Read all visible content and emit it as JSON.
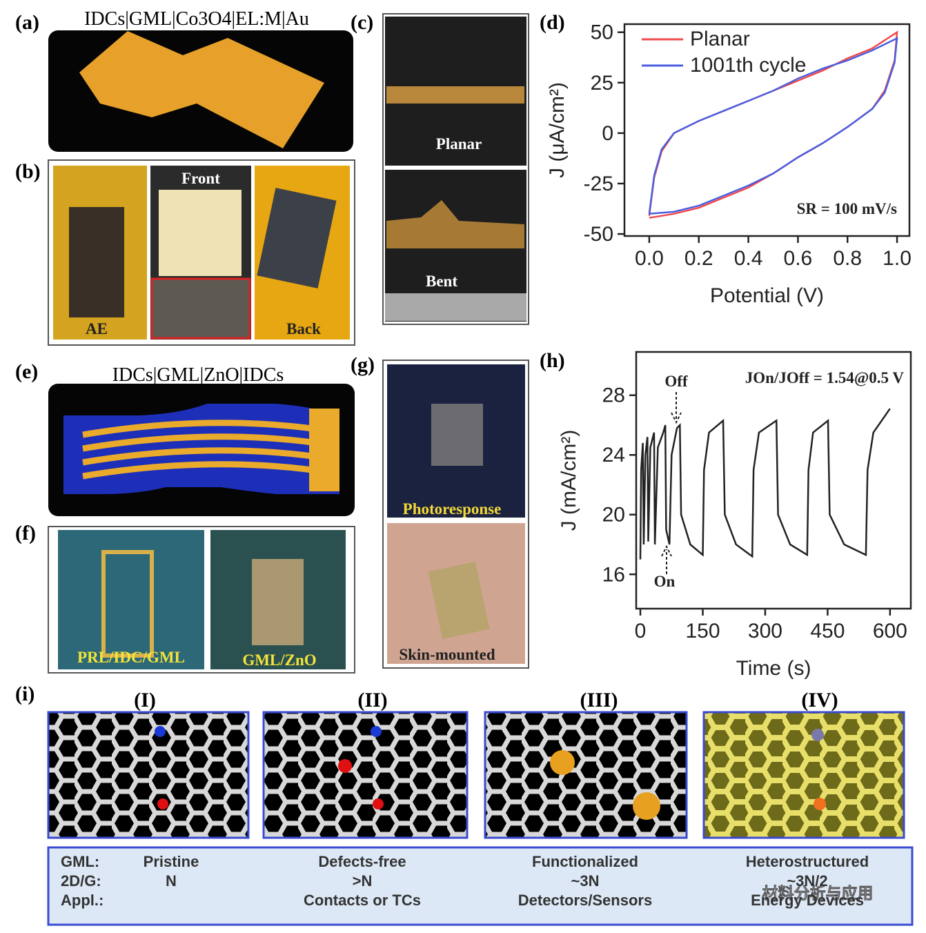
{
  "panels": {
    "a": {
      "label": "(a)",
      "caption": "IDCs|GML|Co3O4|EL:M|Au"
    },
    "b": {
      "label": "(b)",
      "photos": [
        "AE",
        "Front",
        "Back"
      ]
    },
    "c": {
      "label": "(c)",
      "photos": [
        "Planar",
        "Bent"
      ]
    },
    "d": {
      "label": "(d)"
    },
    "e": {
      "label": "(e)",
      "caption": "IDCs|GML|ZnO|IDCs"
    },
    "f": {
      "label": "(f)",
      "photos": [
        "PRL/IDC/GML",
        "GML/ZnO"
      ]
    },
    "g": {
      "label": "(g)",
      "photos": [
        "Photoresponse",
        "Skin-mounted"
      ]
    },
    "h": {
      "label": "(h)"
    },
    "i": {
      "label": "(i)",
      "subpanels": [
        "(I)",
        "(II)",
        "(III)",
        "(IV)"
      ]
    }
  },
  "table": {
    "row_labels": [
      "GML:",
      "2D/G:",
      "Appl.:"
    ],
    "columns": [
      [
        "Pristine",
        "N"
      ],
      [
        "Defects-free",
        ">N",
        "Contacts or TCs"
      ],
      [
        "Functionalized",
        "~3N",
        "Detectors/Sensors"
      ],
      [
        "Heterostructured",
        "~3N/2",
        "Energy Devices"
      ]
    ]
  },
  "watermark": "材料分析与应用",
  "chart_data": [
    {
      "type": "line",
      "xlabel": "Potential (V)",
      "ylabel": "J (μA/cm²)",
      "annotation": "SR = 100 mV/s",
      "legend": "upper left",
      "x": [
        0,
        0.02,
        0.05,
        0.1,
        0.2,
        0.3,
        0.4,
        0.5,
        0.6,
        0.7,
        0.8,
        0.9,
        1.0,
        0.99,
        0.95,
        0.9,
        0.8,
        0.7,
        0.6,
        0.5,
        0.4,
        0.3,
        0.2,
        0.1,
        0.0
      ],
      "series": [
        {
          "name": "Planar",
          "color": "#f0484c",
          "values": [
            -41,
            -22,
            -9,
            0,
            6,
            11,
            16,
            21,
            26,
            31,
            37,
            42,
            50,
            36,
            21,
            12,
            3,
            -5,
            -12,
            -20,
            -27,
            -32,
            -37,
            -40,
            -42
          ]
        },
        {
          "name": "1001th cycle",
          "color": "#4a5ee0",
          "values": [
            -40,
            -21,
            -8,
            0,
            6,
            11,
            16,
            21,
            27,
            32,
            36,
            41,
            47,
            35,
            20,
            12,
            3,
            -5,
            -12,
            -20,
            -26,
            -31,
            -36,
            -39,
            -40
          ]
        }
      ],
      "xlim": [
        -0.1,
        1.05
      ],
      "xticks": [
        {
          "value": 0,
          "label": "0.0"
        },
        0.2,
        0.4,
        0.6,
        0.8,
        {
          "value": 1,
          "label": "1.0"
        }
      ],
      "ylim": [
        -51,
        54
      ],
      "yticks": [
        -50,
        -25,
        0,
        25,
        50
      ]
    },
    {
      "type": "line",
      "xlabel": "Time (s)",
      "ylabel": "J (mA/cm²)",
      "color": "#222222",
      "annotations": [
        "Off",
        "On",
        "JOn/JOff = 1.54@0.5 V"
      ],
      "x": [
        0,
        2,
        6,
        8,
        12,
        17,
        19,
        24,
        33,
        35,
        42,
        55,
        60,
        62,
        70,
        75,
        88,
        95,
        98,
        120,
        150,
        153,
        165,
        199,
        203,
        230,
        269,
        272,
        285,
        327,
        331,
        360,
        401,
        404,
        415,
        451,
        455,
        490,
        542,
        546,
        560,
        600
      ],
      "values": [
        17,
        23,
        24.8,
        18,
        24,
        25.2,
        18.2,
        24.5,
        25.5,
        18,
        24.5,
        25.5,
        26,
        19,
        18,
        24,
        25.8,
        26,
        20,
        18,
        17.3,
        23,
        25.5,
        26.3,
        20,
        18,
        17.2,
        23,
        25.5,
        26.3,
        20,
        18,
        17.3,
        23,
        25.5,
        26.3,
        20,
        18,
        17.3,
        23,
        25.5,
        27.1
      ],
      "xlim": [
        -10,
        650
      ],
      "xticks": [
        0,
        150,
        300,
        450,
        600
      ],
      "ylim": [
        13.7,
        30.9
      ],
      "yticks": [
        16,
        20,
        24,
        28
      ]
    }
  ]
}
